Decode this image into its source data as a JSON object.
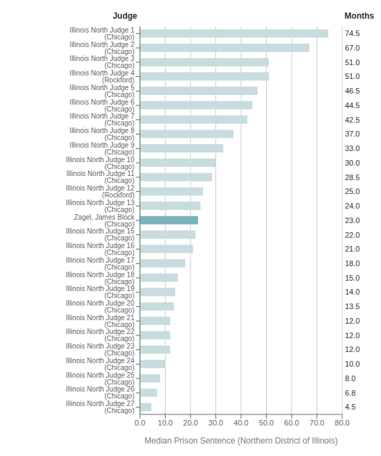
{
  "chart_data": {
    "type": "bar",
    "orientation": "horizontal",
    "ylabel": "Judge",
    "annotations": [
      "Months"
    ],
    "xlabel": "Median Prison Sentence (Northern District of Illinois)",
    "categories": [
      "Illinois North Judge 1 (Chicago)",
      "Illinois North Judge 2 (Chicago)",
      "Illinois North Judge 3 (Chicago)",
      "Illinois North Judge 4 (Rockford)",
      "Illinois North Judge 5 (Chicago)",
      "Illinois North Judge 6 (Chicago)",
      "Illinois North Judge 7 (Chicago)",
      "Illinois North Judge 8 (Chicago)",
      "Illinois North Judge 9 (Chicago)",
      "Illinois North Judge 10 (Chicago)",
      "Illinois North Judge 11 (Chicago)",
      "Illinois North Judge 12 (Rockford)",
      "Illinois North Judge 13 (Chicago)",
      "Zagel, James Block (Chicago)",
      "Illinois North Judge 15 (Chicago)",
      "Illinois North Judge 16 (Chicago)",
      "Illinois North Judge 17 (Chicago)",
      "Illinois North Judge 18 (Chicago)",
      "Illinois North Judge 19 (Chicago)",
      "Illinois North Judge 20 (Chicago)",
      "Illinois North Judge 21 (Chicago)",
      "Illinois North Judge 22 (Chicago)",
      "Illinois North Judge 23 (Chicago)",
      "Illinois North Judge 24 (Chicago)",
      "Illinois North Judge 25 (Chicago)",
      "Illinois North Judge 26 (Chicago)",
      "Illinois North Judge 27 (Chicago)"
    ],
    "values": [
      74.5,
      67.0,
      51.0,
      51.0,
      46.5,
      44.5,
      42.5,
      37.0,
      33.0,
      30.0,
      28.5,
      25.0,
      24.0,
      23.0,
      22.0,
      21.0,
      18.0,
      15.0,
      14.0,
      13.5,
      12.0,
      12.0,
      12.0,
      10.0,
      8.0,
      6.8,
      4.5
    ],
    "value_labels": [
      "74.5",
      "67.0",
      "51.0",
      "51.0",
      "46.5",
      "44.5",
      "42.5",
      "37.0",
      "33.0",
      "30.0",
      "28.5",
      "25.0",
      "24.0",
      "23.0",
      "22.0",
      "21.0",
      "18.0",
      "15.0",
      "14.0",
      "13.5",
      "12.0",
      "12.0",
      "12.0",
      "10.0",
      "8.0",
      "6.8",
      "4.5"
    ],
    "data_labels": true,
    "colors": [
      "#c8dce0",
      "#c8dce0",
      "#c8dce0",
      "#c8dce0",
      "#c8dce0",
      "#c8dce0",
      "#c8dce0",
      "#c8dce0",
      "#c8dce0",
      "#c8dce0",
      "#c8dce0",
      "#c8dce0",
      "#c8dce0",
      "#7ab3be",
      "#c8dce0",
      "#c8dce0",
      "#c8dce0",
      "#c8dce0",
      "#c8dce0",
      "#c8dce0",
      "#c8dce0",
      "#c8dce0",
      "#c8dce0",
      "#c8dce0",
      "#c8dce0",
      "#c8dce0",
      "#c8dce0"
    ],
    "xlim": [
      0,
      80
    ],
    "xticks": [
      {
        "value": 0,
        "label": "0.0"
      },
      {
        "value": 10,
        "label": "10.0"
      },
      {
        "value": 20,
        "label": "20.0"
      },
      {
        "value": 30,
        "label": "30.0"
      },
      {
        "value": 40,
        "label": "40.0"
      },
      {
        "value": 50,
        "label": "50.0"
      },
      {
        "value": 60,
        "label": "60.0"
      },
      {
        "value": 70,
        "label": "70.0"
      },
      {
        "value": 80,
        "label": "80.0"
      }
    ],
    "grid": true
  }
}
